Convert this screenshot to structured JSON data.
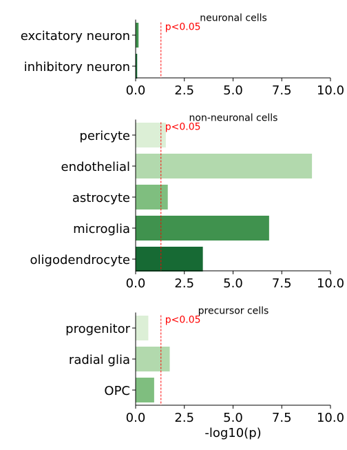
{
  "chart_data": [
    {
      "type": "bar",
      "orientation": "horizontal",
      "title": "neuronal cells",
      "categories": [
        "excitatory neuron",
        "inhibitory neuron"
      ],
      "values": [
        0.15,
        0.08
      ],
      "colors": [
        "#40924e",
        "#1a6b36"
      ],
      "xlim": [
        0,
        10
      ],
      "xticks": [
        "0.0",
        "2.5",
        "5.0",
        "7.5",
        "10.0"
      ],
      "threshold": {
        "value": 1.3,
        "label": "p<0.05",
        "color": "#ff0000"
      },
      "xlabel": ""
    },
    {
      "type": "bar",
      "orientation": "horizontal",
      "title": "non-neuronal cells",
      "categories": [
        "pericyte",
        "endothelial",
        "astrocyte",
        "microglia",
        "oligodendrocyte"
      ],
      "values": [
        1.55,
        9.05,
        1.65,
        6.85,
        3.45
      ],
      "colors": [
        "#dcefd6",
        "#b2d9ad",
        "#7fbe7f",
        "#40924e",
        "#176a34"
      ],
      "xlim": [
        0,
        10
      ],
      "xticks": [
        "0.0",
        "2.5",
        "5.0",
        "7.5",
        "10.0"
      ],
      "threshold": {
        "value": 1.3,
        "label": "p<0.05",
        "color": "#ff0000"
      },
      "xlabel": ""
    },
    {
      "type": "bar",
      "orientation": "horizontal",
      "title": "precursor cells",
      "categories": [
        "progenitor",
        "radial glia",
        "OPC"
      ],
      "values": [
        0.65,
        1.75,
        0.95
      ],
      "colors": [
        "#dcefd6",
        "#b2d9ad",
        "#7fbe7f"
      ],
      "xlim": [
        0,
        10
      ],
      "xticks": [
        "0.0",
        "2.5",
        "5.0",
        "7.5",
        "10.0"
      ],
      "threshold": {
        "value": 1.3,
        "label": "p<0.05",
        "color": "#ff0000"
      },
      "xlabel": "-log10(p)"
    }
  ]
}
